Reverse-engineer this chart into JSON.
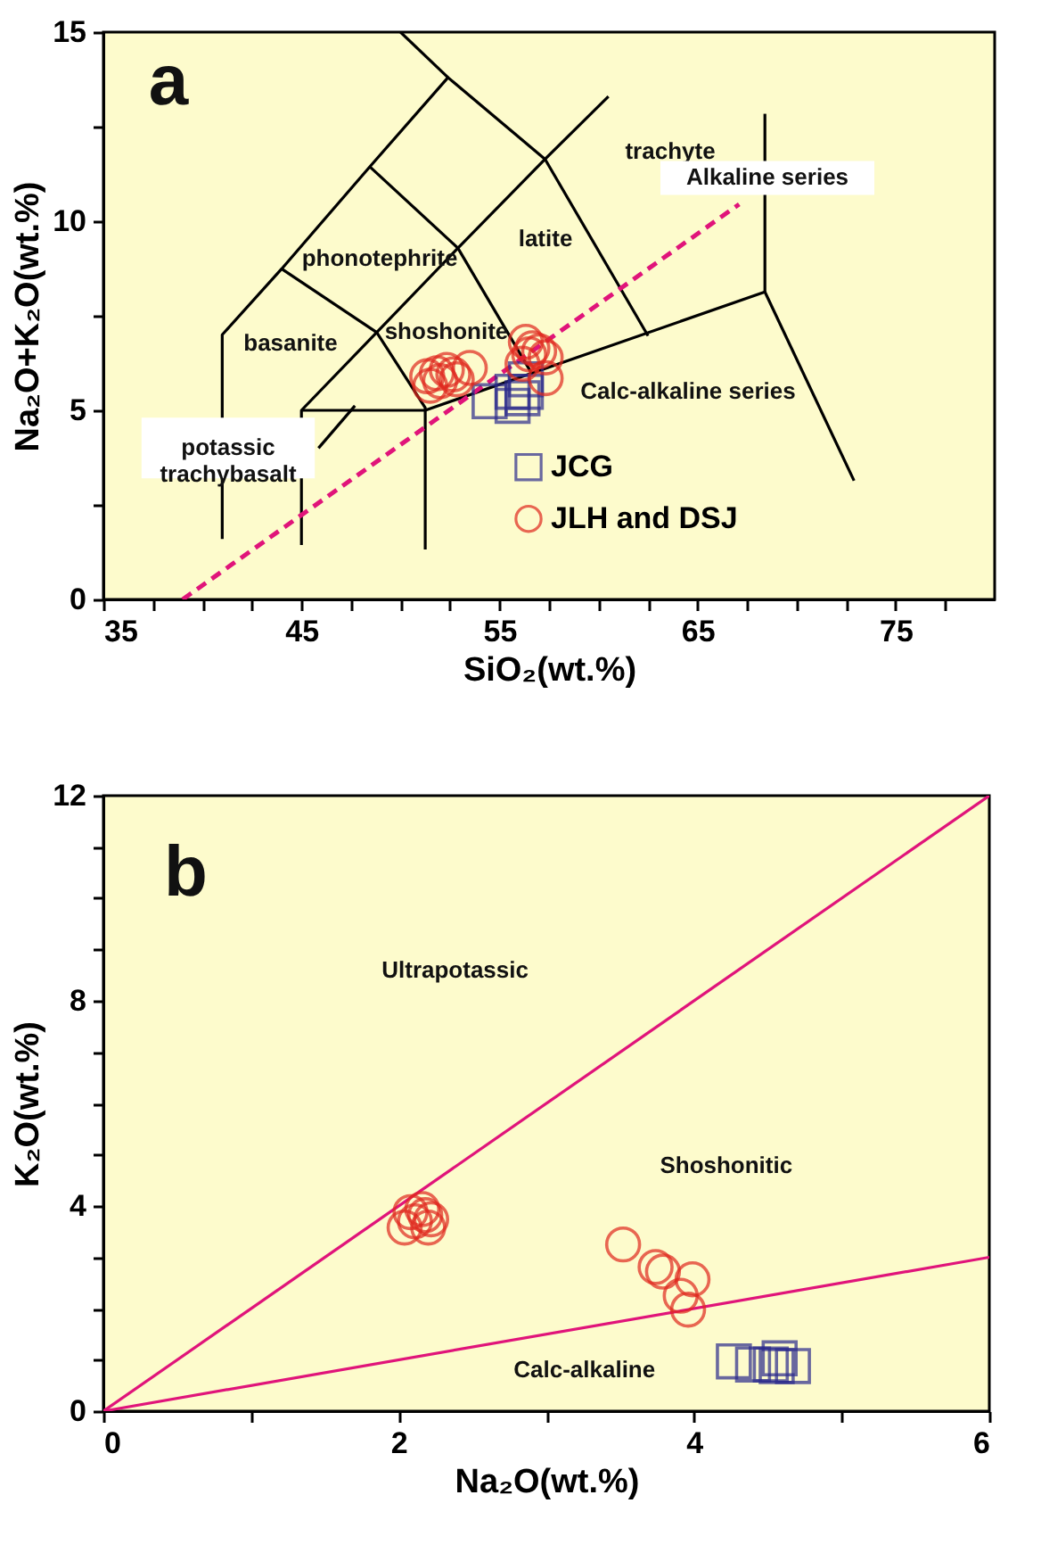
{
  "chart_data": [
    {
      "type": "scatter",
      "xlabel": "SiO₂(wt.%)",
      "ylabel": "Na₂O+K₂O(wt.%)",
      "xlim": [
        35,
        80
      ],
      "ylim": [
        0,
        15
      ],
      "xticks": [
        35,
        {
          "value": 37.5,
          "label": null
        },
        {
          "value": 40,
          "label": null
        },
        {
          "value": 42.5,
          "label": null
        },
        45,
        {
          "value": 47.5,
          "label": null
        },
        {
          "value": 50,
          "label": null
        },
        {
          "value": 52.5,
          "label": null
        },
        55,
        {
          "value": 57.5,
          "label": null
        },
        {
          "value": 60,
          "label": null
        },
        {
          "value": 62.5,
          "label": null
        },
        65,
        {
          "value": 67.5,
          "label": null
        },
        {
          "value": 70,
          "label": null
        },
        {
          "value": 72.5,
          "label": null
        },
        75,
        {
          "value": 77.5,
          "label": null
        }
      ],
      "yticks": [
        0,
        {
          "value": 2.5,
          "label": null
        },
        5,
        {
          "value": 7.5,
          "label": null
        },
        10,
        {
          "value": 12.5,
          "label": null
        },
        15
      ],
      "grid": false,
      "legend": "bottom",
      "series": [
        {
          "type": "line",
          "color": "#000000",
          "x": [
            41,
            41,
            44,
            48.45,
            52.4,
            57.3,
            62.5
          ],
          "values": [
            1.6,
            7.0,
            8.74,
            11.44,
            13.8,
            11.64,
            6.97
          ]
        },
        {
          "type": "line",
          "color": "#000000",
          "x": [
            50,
            52.4
          ],
          "values": [
            15,
            13.8
          ]
        },
        {
          "type": "line",
          "color": "#000000",
          "x": [
            44,
            48.8,
            51.25,
            51.25
          ],
          "values": [
            8.74,
            7.06,
            5.07,
            1.32
          ]
        },
        {
          "type": "line",
          "color": "#000000",
          "x": [
            45,
            45,
            48.8,
            52.9,
            57.3,
            60.5
          ],
          "values": [
            1.44,
            5,
            7.06,
            9.29,
            11.64,
            13.3
          ]
        },
        {
          "type": "line",
          "color": "#000000",
          "x": [
            48.45,
            52.9,
            56.6
          ],
          "values": [
            11.44,
            9.29,
            6.0
          ]
        },
        {
          "type": "line",
          "color": "#000000",
          "x": [
            45,
            51.25,
            68.4,
            72.9
          ],
          "values": [
            5,
            5,
            8.13,
            3.14
          ]
        },
        {
          "type": "line",
          "color": "#000000",
          "x": [
            68.4,
            68.4
          ],
          "values": [
            8.13,
            12.84
          ]
        },
        {
          "type": "line",
          "color": "#000000",
          "x": [
            45.86,
            47.7
          ],
          "values": [
            4.0,
            5.12
          ]
        },
        {
          "type": "line",
          "color": "#e0147a",
          "line_style": "dashed",
          "x": [
            39.0,
            67.1
          ],
          "values": [
            0,
            10.45
          ]
        },
        {
          "type": "scatter",
          "name": "JCG",
          "color": "#2b2a8c",
          "marker": "square",
          "x": [
            54.5,
            55.66,
            55.66,
            56.33,
            56.33,
            56.16
          ],
          "values": [
            5.24,
            5.12,
            5.49,
            5.49,
            5.82,
            5.32
          ]
        },
        {
          "type": "scatter",
          "name": "JLH and DSJ",
          "color": "#e0281e",
          "marker": "circle",
          "x": [
            51.35,
            51.84,
            52.34,
            52.0,
            51.5,
            52.67,
            53.5,
            52.84,
            56.33,
            56.5,
            57.0,
            56.16,
            57.33,
            57.33,
            56.66
          ],
          "values": [
            5.9,
            5.98,
            6.07,
            5.77,
            5.65,
            5.95,
            6.12,
            5.82,
            6.81,
            6.48,
            6.56,
            6.23,
            6.4,
            5.85,
            6.64
          ]
        }
      ],
      "annotations": [
        "a",
        "trachyte",
        "Alkaline series",
        "phonotephrite",
        "latite",
        "basanite",
        "shoshonite",
        "Calc-alkaline series",
        "potassic\ntrachybasalt"
      ]
    },
    {
      "type": "scatter",
      "xlabel": "Na₂O(wt.%)",
      "ylabel": "K₂O(wt.%)",
      "xlim": [
        0,
        6
      ],
      "ylim": [
        0,
        12
      ],
      "xticks": [
        0,
        {
          "value": 1,
          "label": null
        },
        2,
        {
          "value": 3,
          "label": null
        },
        4,
        {
          "value": 5,
          "label": null
        },
        6
      ],
      "yticks": [
        0,
        {
          "value": 1,
          "label": null
        },
        {
          "value": 2,
          "label": null
        },
        {
          "value": 3,
          "label": null
        },
        4,
        {
          "value": 5,
          "label": null
        },
        {
          "value": 6,
          "label": null
        },
        {
          "value": 7,
          "label": null
        },
        8,
        {
          "value": 9,
          "label": null
        },
        {
          "value": 10,
          "label": null
        },
        {
          "value": 11,
          "label": null
        },
        12
      ],
      "grid": false,
      "series": [
        {
          "type": "line",
          "color": "#e0147a",
          "x": [
            0,
            6
          ],
          "values": [
            0,
            12
          ]
        },
        {
          "type": "line",
          "color": "#e0147a",
          "x": [
            0,
            6
          ],
          "values": [
            0,
            3
          ]
        },
        {
          "type": "scatter",
          "color": "#2b2a8c",
          "marker": "square",
          "x": [
            4.27,
            4.4,
            4.52,
            4.58,
            4.67,
            4.56
          ],
          "values": [
            0.97,
            0.91,
            0.91,
            1.03,
            0.88,
            0.88
          ]
        },
        {
          "type": "scatter",
          "color": "#e0281e",
          "marker": "circle",
          "x": [
            2.04,
            2.11,
            2.18,
            2.22,
            2.16,
            2.08,
            2.2,
            3.52,
            3.74,
            3.79,
            3.99,
            3.91,
            3.96
          ],
          "values": [
            3.58,
            3.7,
            3.82,
            3.74,
            3.94,
            3.88,
            3.58,
            3.25,
            2.81,
            2.72,
            2.57,
            2.25,
            1.98
          ]
        }
      ],
      "annotations": [
        "b",
        "Ultrapotassic",
        "Shoshonitic",
        "Calc-alkaline"
      ]
    }
  ]
}
